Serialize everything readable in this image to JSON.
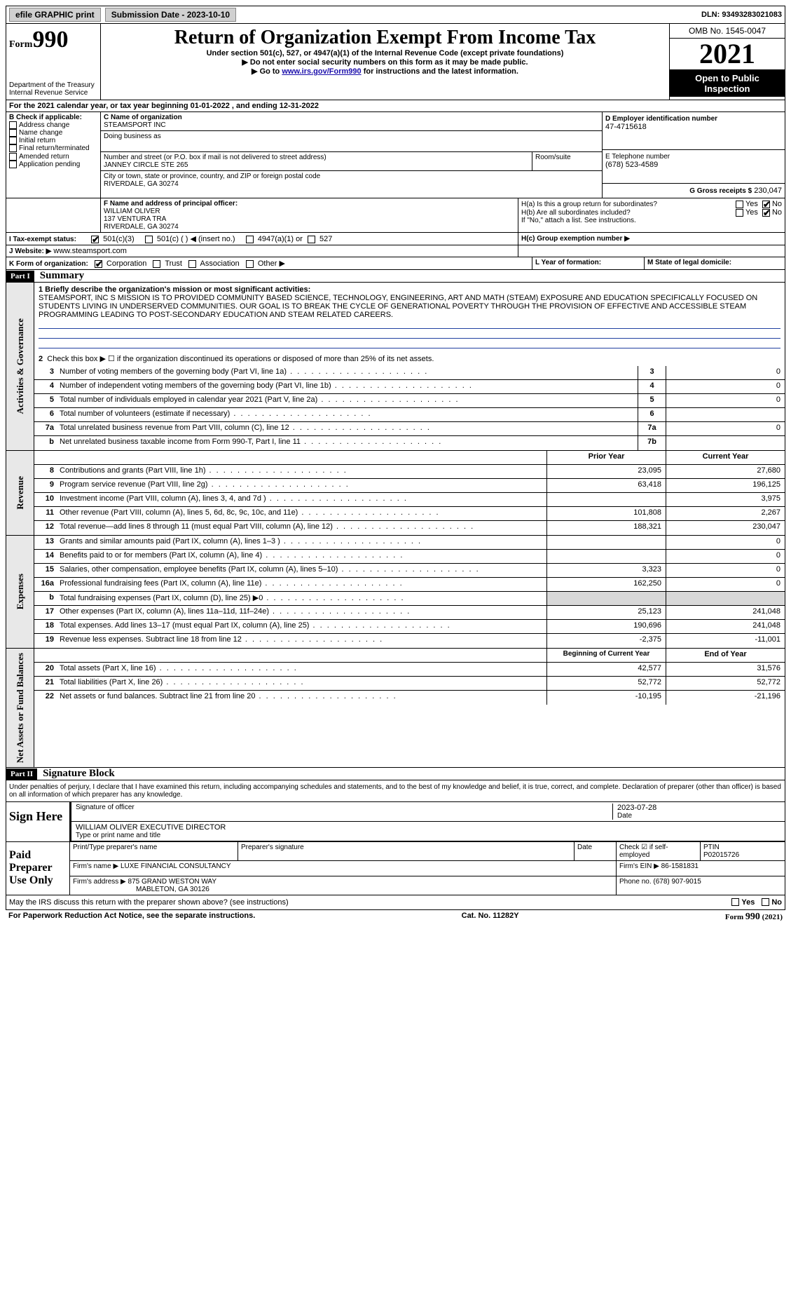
{
  "topbar": {
    "efile_btn": "efile GRAPHIC print",
    "submission_label": "Submission Date - 2023-10-10",
    "dln_label": "DLN: 93493283021083"
  },
  "header": {
    "form_word": "Form",
    "form_num": "990",
    "title": "Return of Organization Exempt From Income Tax",
    "subtitle": "Under section 501(c), 527, or 4947(a)(1) of the Internal Revenue Code (except private foundations)",
    "note1": "▶ Do not enter social security numbers on this form as it may be made public.",
    "note2_pre": "▶ Go to ",
    "note2_link": "www.irs.gov/Form990",
    "note2_post": " for instructions and the latest information.",
    "dept": "Department of the Treasury",
    "irs": "Internal Revenue Service",
    "omb": "OMB No. 1545-0047",
    "year": "2021",
    "open": "Open to Public Inspection"
  },
  "lineA": "For the 2021 calendar year, or tax year beginning 01-01-2022   , and ending 12-31-2022",
  "boxB": {
    "label": "B Check if applicable:",
    "opts": [
      "Address change",
      "Name change",
      "Initial return",
      "Final return/terminated",
      "Amended return",
      "Application pending"
    ]
  },
  "boxC": {
    "name_label": "C Name of organization",
    "name": "STEAMSPORT INC",
    "dba_label": "Doing business as",
    "street_label": "Number and street (or P.O. box if mail is not delivered to street address)",
    "street": "JANNEY CIRCLE STE 265",
    "room_label": "Room/suite",
    "city_label": "City or town, state or province, country, and ZIP or foreign postal code",
    "city": "RIVERDALE, GA  30274"
  },
  "boxD": {
    "label": "D Employer identification number",
    "val": "47-4715618"
  },
  "boxE": {
    "label": "E Telephone number",
    "val": "(678) 523-4589"
  },
  "boxG": {
    "label": "G Gross receipts $",
    "val": "230,047"
  },
  "boxF": {
    "label": "F  Name and address of principal officer:",
    "name": "WILLIAM OLIVER",
    "street": "137 VENTURA TRA",
    "city": "RIVERDALE, GA  30274"
  },
  "boxH": {
    "a_label": "H(a)  Is this a group return for subordinates?",
    "b_label": "H(b)  Are all subordinates included?",
    "b_note": "If \"No,\" attach a list. See instructions.",
    "c_label": "H(c)  Group exemption number ▶",
    "yes": "Yes",
    "no": "No"
  },
  "boxI": {
    "label": "I  Tax-exempt status:",
    "opt1": "501(c)(3)",
    "opt2": "501(c) (  ) ◀ (insert no.)",
    "opt3": "4947(a)(1) or",
    "opt4": "527"
  },
  "boxJ": {
    "label": "J  Website: ▶",
    "val": "www.steamsport.com"
  },
  "boxK": {
    "label": "K Form of organization:",
    "opts": [
      "Corporation",
      "Trust",
      "Association",
      "Other ▶"
    ]
  },
  "boxL": {
    "label": "L Year of formation:"
  },
  "boxM": {
    "label": "M State of legal domicile:"
  },
  "part1": {
    "head": "Part I",
    "title": "Summary"
  },
  "summary": {
    "s1_label": "1  Briefly describe the organization's mission or most significant activities:",
    "mission": "STEAMSPORT, INC S MISSION IS TO PROVIDED COMMUNITY BASED SCIENCE, TECHNOLOGY, ENGINEERING, ART AND MATH (STEAM) EXPOSURE AND EDUCATION SPECIFICALLY FOCUSED ON STUDENTS LIVING IN UNDERSERVED COMMUNITIES. OUR GOAL IS TO BREAK THE CYCLE OF GENERATIONAL POVERTY THROUGH THE PROVISION OF EFFECTIVE AND ACCESSIBLE STEAM PROGRAMMING LEADING TO POST-SECONDARY EDUCATION AND STEAM RELATED CAREERS.",
    "s2": "Check this box ▶ ☐  if the organization discontinued its operations or disposed of more than 25% of its net assets.",
    "lines": [
      {
        "n": "3",
        "d": "Number of voting members of the governing body (Part VI, line 1a)",
        "box": "3",
        "v": "0"
      },
      {
        "n": "4",
        "d": "Number of independent voting members of the governing body (Part VI, line 1b)",
        "box": "4",
        "v": "0"
      },
      {
        "n": "5",
        "d": "Total number of individuals employed in calendar year 2021 (Part V, line 2a)",
        "box": "5",
        "v": "0"
      },
      {
        "n": "6",
        "d": "Total number of volunteers (estimate if necessary)",
        "box": "6",
        "v": ""
      },
      {
        "n": "7a",
        "d": "Total unrelated business revenue from Part VIII, column (C), line 12",
        "box": "7a",
        "v": "0"
      },
      {
        "n": "b",
        "d": "Net unrelated business taxable income from Form 990-T, Part I, line 11",
        "box": "7b",
        "v": ""
      }
    ],
    "col_prior": "Prior Year",
    "col_current": "Current Year",
    "revenue": [
      {
        "n": "8",
        "d": "Contributions and grants (Part VIII, line 1h)",
        "p": "23,095",
        "c": "27,680"
      },
      {
        "n": "9",
        "d": "Program service revenue (Part VIII, line 2g)",
        "p": "63,418",
        "c": "196,125"
      },
      {
        "n": "10",
        "d": "Investment income (Part VIII, column (A), lines 3, 4, and 7d )",
        "p": "",
        "c": "3,975"
      },
      {
        "n": "11",
        "d": "Other revenue (Part VIII, column (A), lines 5, 6d, 8c, 9c, 10c, and 11e)",
        "p": "101,808",
        "c": "2,267"
      },
      {
        "n": "12",
        "d": "Total revenue—add lines 8 through 11 (must equal Part VIII, column (A), line 12)",
        "p": "188,321",
        "c": "230,047"
      }
    ],
    "expenses": [
      {
        "n": "13",
        "d": "Grants and similar amounts paid (Part IX, column (A), lines 1–3 )",
        "p": "",
        "c": "0"
      },
      {
        "n": "14",
        "d": "Benefits paid to or for members (Part IX, column (A), line 4)",
        "p": "",
        "c": "0"
      },
      {
        "n": "15",
        "d": "Salaries, other compensation, employee benefits (Part IX, column (A), lines 5–10)",
        "p": "3,323",
        "c": "0"
      },
      {
        "n": "16a",
        "d": "Professional fundraising fees (Part IX, column (A), line 11e)",
        "p": "162,250",
        "c": "0"
      },
      {
        "n": "b",
        "d": "Total fundraising expenses (Part IX, column (D), line 25) ▶0",
        "p": "shade",
        "c": "shade"
      },
      {
        "n": "17",
        "d": "Other expenses (Part IX, column (A), lines 11a–11d, 11f–24e)",
        "p": "25,123",
        "c": "241,048"
      },
      {
        "n": "18",
        "d": "Total expenses. Add lines 13–17 (must equal Part IX, column (A), line 25)",
        "p": "190,696",
        "c": "241,048"
      },
      {
        "n": "19",
        "d": "Revenue less expenses. Subtract line 18 from line 12",
        "p": "-2,375",
        "c": "-11,001"
      }
    ],
    "col_begin": "Beginning of Current Year",
    "col_end": "End of Year",
    "netassets": [
      {
        "n": "20",
        "d": "Total assets (Part X, line 16)",
        "p": "42,577",
        "c": "31,576"
      },
      {
        "n": "21",
        "d": "Total liabilities (Part X, line 26)",
        "p": "52,772",
        "c": "52,772"
      },
      {
        "n": "22",
        "d": "Net assets or fund balances. Subtract line 21 from line 20",
        "p": "-10,195",
        "c": "-21,196"
      }
    ],
    "vlabels": {
      "gov": "Activities & Governance",
      "rev": "Revenue",
      "exp": "Expenses",
      "net": "Net Assets or Fund Balances"
    }
  },
  "part2": {
    "head": "Part II",
    "title": "Signature Block"
  },
  "sig": {
    "penalty": "Under penalties of perjury, I declare that I have examined this return, including accompanying schedules and statements, and to the best of my knowledge and belief, it is true, correct, and complete. Declaration of preparer (other than officer) is based on all information of which preparer has any knowledge.",
    "sign_here": "Sign Here",
    "sig_officer_label": "Signature of officer",
    "date_label": "Date",
    "date_val": "2023-07-28",
    "name_title": "WILLIAM OLIVER  EXECUTIVE DIRECTOR",
    "name_title_label": "Type or print name and title",
    "paid": "Paid Preparer Use Only",
    "print_label": "Print/Type preparer's name",
    "prep_sig_label": "Preparer's signature",
    "prep_date_label": "Date",
    "self_emp": "Check ☑ if self-employed",
    "ptin_label": "PTIN",
    "ptin": "P02015726",
    "firm_name_label": "Firm's name    ▶",
    "firm_name": "LUXE FINANCIAL CONSULTANCY",
    "firm_ein_label": "Firm's EIN ▶",
    "firm_ein": "86-1581831",
    "firm_addr_label": "Firm's address ▶",
    "firm_addr1": "875 GRAND WESTON WAY",
    "firm_addr2": "MABLETON, GA  30126",
    "phone_label": "Phone no.",
    "phone": "(678) 907-9015",
    "discuss": "May the IRS discuss this return with the preparer shown above? (see instructions)",
    "yes": "Yes",
    "no": "No"
  },
  "footer": {
    "left": "For Paperwork Reduction Act Notice, see the separate instructions.",
    "mid": "Cat. No. 11282Y",
    "right_pre": "Form ",
    "right_num": "990",
    "right_post": " (2021)"
  }
}
